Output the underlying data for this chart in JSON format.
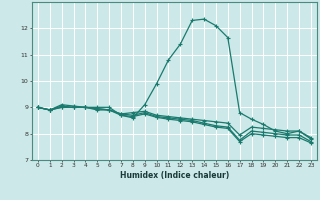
{
  "xlabel": "Humidex (Indice chaleur)",
  "background_color": "#cce8e8",
  "grid_color": "#b0d8d8",
  "line_color": "#1a7a6e",
  "xlim": [
    -0.5,
    23.5
  ],
  "ylim": [
    7,
    13
  ],
  "yticks": [
    7,
    8,
    9,
    10,
    11,
    12
  ],
  "xticks": [
    0,
    1,
    2,
    3,
    4,
    5,
    6,
    7,
    8,
    9,
    10,
    11,
    12,
    13,
    14,
    15,
    16,
    17,
    18,
    19,
    20,
    21,
    22,
    23
  ],
  "tick_fontsize": 4.2,
  "xlabel_fontsize": 5.5,
  "curves": [
    {
      "x": [
        0,
        1,
        2,
        3,
        4,
        5,
        6,
        7,
        8,
        9,
        10,
        11,
        12,
        13,
        14,
        15,
        16,
        17,
        18,
        19,
        20,
        21,
        22,
        23
      ],
      "y": [
        9.0,
        8.9,
        9.1,
        9.05,
        9.0,
        9.0,
        9.0,
        8.7,
        8.6,
        9.1,
        9.9,
        10.8,
        11.4,
        12.3,
        12.35,
        12.1,
        11.65,
        8.8,
        8.55,
        8.35,
        8.1,
        8.0,
        8.1,
        7.8
      ]
    },
    {
      "x": [
        0,
        1,
        2,
        3,
        4,
        5,
        6,
        7,
        8,
        9,
        10,
        11,
        12,
        13,
        14,
        15,
        16,
        17,
        18,
        19,
        20,
        21,
        22,
        23
      ],
      "y": [
        9.0,
        8.9,
        9.05,
        9.0,
        9.0,
        8.95,
        8.9,
        8.75,
        8.8,
        8.85,
        8.7,
        8.65,
        8.6,
        8.55,
        8.5,
        8.45,
        8.4,
        7.95,
        8.25,
        8.2,
        8.15,
        8.1,
        8.1,
        7.85
      ]
    },
    {
      "x": [
        0,
        1,
        2,
        3,
        4,
        5,
        6,
        7,
        8,
        9,
        10,
        11,
        12,
        13,
        14,
        15,
        16,
        17,
        18,
        19,
        20,
        21,
        22,
        23
      ],
      "y": [
        9.0,
        8.9,
        9.0,
        9.0,
        9.0,
        8.95,
        8.9,
        8.75,
        8.7,
        8.8,
        8.65,
        8.6,
        8.55,
        8.5,
        8.4,
        8.3,
        8.25,
        7.75,
        8.1,
        8.05,
        8.0,
        7.95,
        7.95,
        7.7
      ]
    },
    {
      "x": [
        0,
        1,
        2,
        3,
        4,
        5,
        6,
        7,
        8,
        9,
        10,
        11,
        12,
        13,
        14,
        15,
        16,
        17,
        18,
        19,
        20,
        21,
        22,
        23
      ],
      "y": [
        9.0,
        8.9,
        9.0,
        9.0,
        9.0,
        8.9,
        8.9,
        8.7,
        8.65,
        8.75,
        8.62,
        8.55,
        8.5,
        8.45,
        8.35,
        8.25,
        8.2,
        7.7,
        8.0,
        7.95,
        7.9,
        7.85,
        7.85,
        7.65
      ]
    }
  ]
}
